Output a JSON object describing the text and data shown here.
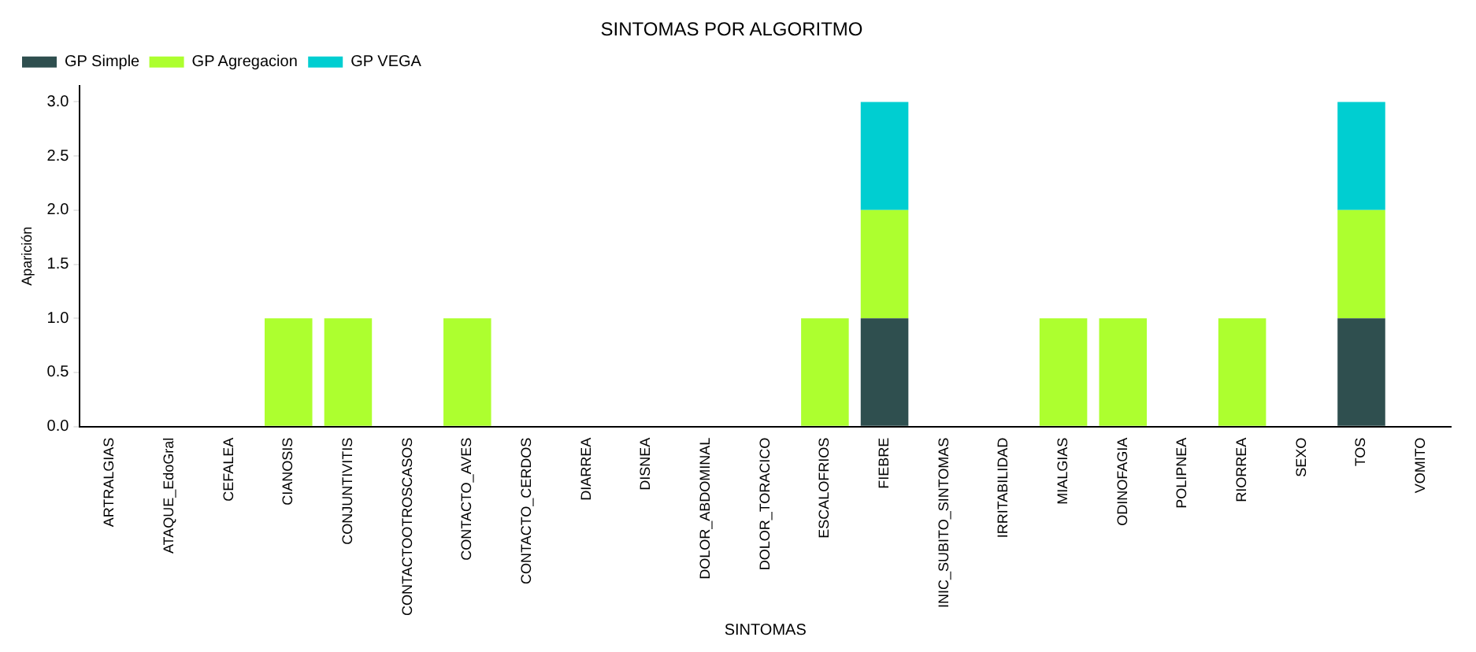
{
  "chart_data": {
    "type": "bar",
    "title": "SINTOMAS POR ALGORITMO",
    "xlabel": "SINTOMAS",
    "ylabel": "Aparición",
    "categories": [
      "ARTRALGIAS",
      "ATAQUE_EdoGral",
      "CEFALEA",
      "CIANOSIS",
      "CONJUNTIVITIS",
      "CONTACTOOTROSCASOS",
      "CONTACTO_AVES",
      "CONTACTO_CERDOS",
      "DIARREA",
      "DISNEA",
      "DOLOR_ABDOMINAL",
      "DOLOR_TORACICO",
      "ESCALOFRIOS",
      "FIEBRE",
      "INIC_SUBITO_SINTOMAS",
      "IRRITABILIDAD",
      "MIALGIAS",
      "ODINOFAGIA",
      "POLIPNEA",
      "RIORREA",
      "SEXO",
      "TOS",
      "VOMITO"
    ],
    "series": [
      {
        "name": "GP Simple",
        "color": "#2f4f4f",
        "values": [
          0,
          0,
          0,
          0,
          0,
          0,
          0,
          0,
          0,
          0,
          0,
          0,
          0,
          1,
          0,
          0,
          0,
          0,
          0,
          0,
          0,
          1,
          0
        ]
      },
      {
        "name": "GP Agregacion",
        "color": "#adff2f",
        "values": [
          0,
          0,
          0,
          1,
          1,
          0,
          1,
          0,
          0,
          0,
          0,
          0,
          1,
          1,
          0,
          0,
          1,
          1,
          0,
          1,
          0,
          1,
          0
        ]
      },
      {
        "name": "GP VEGA",
        "color": "#00ced1",
        "values": [
          0,
          0,
          0,
          0,
          0,
          0,
          0,
          0,
          0,
          0,
          0,
          0,
          0,
          1,
          0,
          0,
          0,
          0,
          0,
          0,
          0,
          1,
          0
        ]
      }
    ],
    "stacked": true,
    "ylim": [
      0,
      3.15
    ],
    "yticks": [
      {
        "value": 0,
        "label": "0.0"
      },
      {
        "value": 0.5,
        "label": "0.5"
      },
      {
        "value": 1,
        "label": "1.0"
      },
      {
        "value": 1.5,
        "label": "1.5"
      },
      {
        "value": 2,
        "label": "2.0"
      },
      {
        "value": 2.5,
        "label": "2.5"
      },
      {
        "value": 3,
        "label": "3.0"
      }
    ],
    "grid": false,
    "legend": "top left"
  }
}
